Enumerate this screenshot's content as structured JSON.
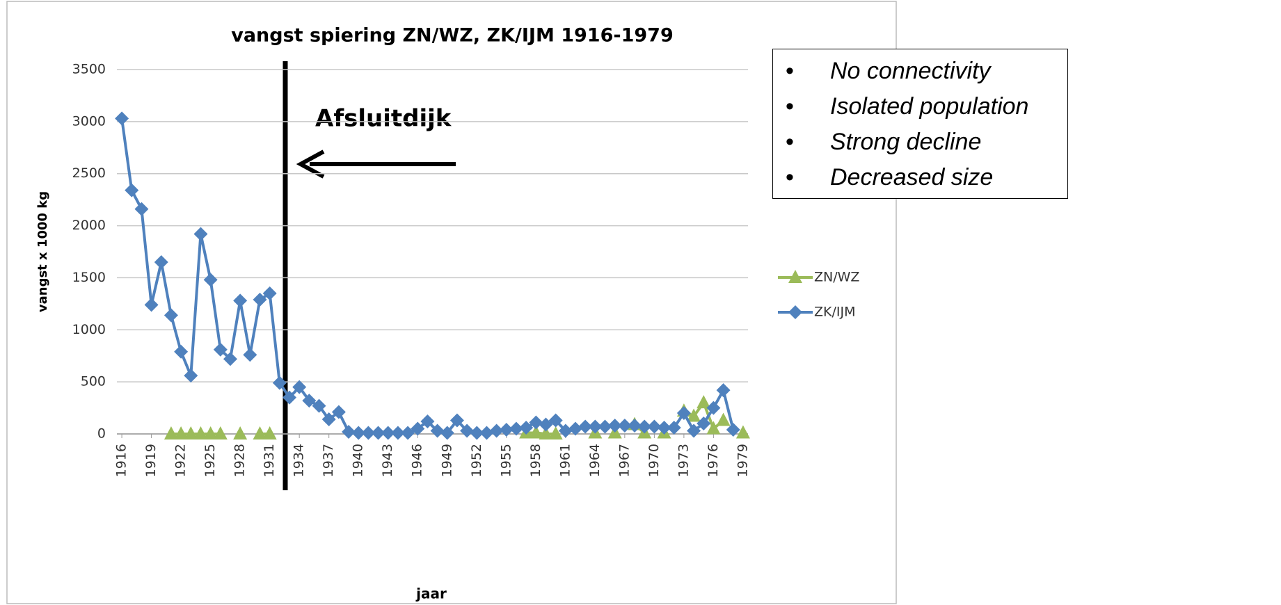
{
  "chart_data": {
    "type": "line",
    "title": "vangst spiering ZN/WZ, ZK/IJM 1916-1979",
    "y_label": "vangst x 1000 kg",
    "x_label": "jaar",
    "annotation": "Afsluitdijk",
    "notes": [
      "No connectivity",
      "Isolated population",
      "Strong decline",
      "Decreased size"
    ],
    "categories": [
      1916,
      null,
      null,
      1919,
      null,
      null,
      1922,
      null,
      null,
      1925,
      null,
      null,
      1928,
      null,
      null,
      1931,
      null,
      null,
      1934,
      null,
      null,
      1937,
      null,
      null,
      1940,
      null,
      null,
      1943,
      null,
      null,
      1946,
      null,
      null,
      1949,
      null,
      null,
      1952,
      null,
      null,
      1955,
      null,
      null,
      1958,
      null,
      null,
      1961,
      null,
      null,
      1964,
      null,
      null,
      1967,
      null,
      null,
      1970,
      null,
      null,
      1973,
      null,
      null,
      1976,
      null,
      null,
      1979
    ],
    "series": [
      {
        "name": "ZN/WZ",
        "color": "#9bbb59",
        "marker": "triangle",
        "values": [
          null,
          null,
          null,
          null,
          null,
          0,
          0,
          0,
          0,
          0,
          0,
          null,
          0,
          null,
          0,
          0,
          null,
          null,
          null,
          null,
          null,
          null,
          null,
          null,
          null,
          null,
          null,
          null,
          null,
          null,
          null,
          null,
          null,
          null,
          null,
          null,
          null,
          null,
          null,
          null,
          null,
          10,
          10,
          0,
          0,
          null,
          null,
          null,
          10,
          null,
          10,
          null,
          90,
          10,
          null,
          10,
          null,
          220,
          170,
          300,
          50,
          130,
          null,
          10
        ]
      },
      {
        "name": "ZK/IJM",
        "color": "#4f81bd",
        "marker": "diamond",
        "values": [
          3030,
          2340,
          2160,
          1240,
          1650,
          1140,
          790,
          560,
          1920,
          1480,
          810,
          720,
          1280,
          760,
          1290,
          1350,
          490,
          350,
          450,
          320,
          270,
          140,
          210,
          20,
          10,
          10,
          10,
          10,
          10,
          10,
          50,
          120,
          30,
          10,
          130,
          30,
          10,
          10,
          30,
          40,
          50,
          60,
          110,
          90,
          130,
          30,
          50,
          70,
          70,
          70,
          80,
          80,
          80,
          70,
          70,
          60,
          60,
          200,
          30,
          100,
          250,
          420,
          40,
          null
        ]
      }
    ],
    "ylim": [
      0,
      3500
    ],
    "yticks": [
      0,
      500,
      1000,
      1500,
      2000,
      2500,
      3000,
      3500
    ],
    "grid": true,
    "legend": "right"
  }
}
